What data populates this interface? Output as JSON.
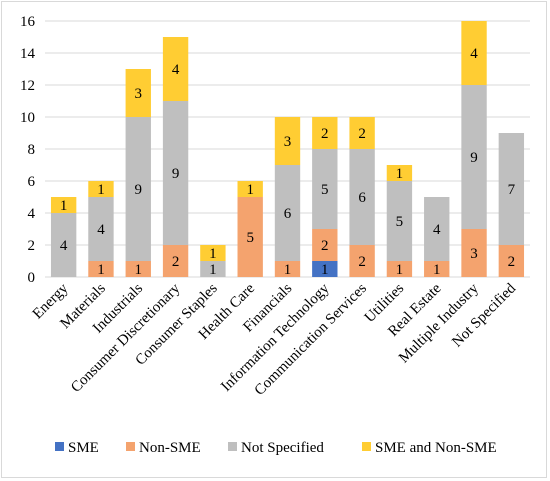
{
  "chart_data": {
    "type": "bar",
    "stacked": true,
    "title": "",
    "xlabel": "",
    "ylabel": "",
    "ylim": [
      0,
      16
    ],
    "yticks": [
      0,
      2,
      4,
      6,
      8,
      10,
      12,
      14,
      16
    ],
    "grid": true,
    "legend_position": "bottom",
    "categories": [
      "Energy",
      "Materials",
      "Industrials",
      "Consumer Discretionary",
      "Consumer Staples",
      "Health Care",
      "Financials",
      "Information Technology",
      "Communication Services",
      "Utilities",
      "Real Estate",
      "Multiple Industry",
      "Not Specified"
    ],
    "series": [
      {
        "name": "SME",
        "color": "#4472c4",
        "values": [
          0,
          0,
          0,
          0,
          0,
          0,
          0,
          1,
          0,
          0,
          0,
          0,
          0
        ]
      },
      {
        "name": "Non-SME",
        "color": "#f4a36e",
        "values": [
          0,
          1,
          1,
          2,
          0,
          5,
          1,
          2,
          2,
          1,
          1,
          3,
          2
        ]
      },
      {
        "name": "Not Specified",
        "color": "#bfbfbf",
        "values": [
          4,
          4,
          9,
          9,
          1,
          0,
          6,
          5,
          6,
          5,
          4,
          9,
          7
        ]
      },
      {
        "name": "SME and Non-SME",
        "color": "#ffcd33",
        "values": [
          1,
          1,
          3,
          4,
          1,
          1,
          3,
          2,
          2,
          1,
          0,
          4,
          0
        ]
      }
    ]
  }
}
